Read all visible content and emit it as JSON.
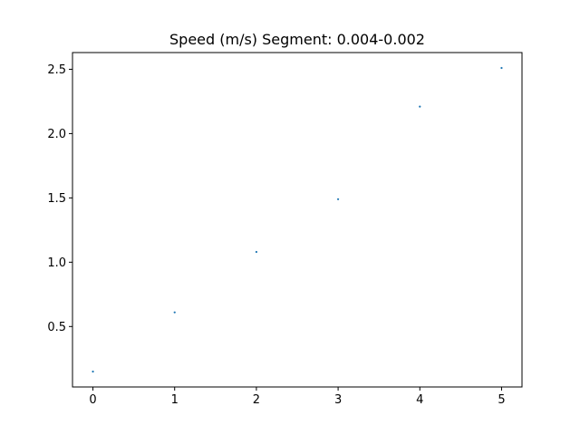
{
  "chart_data": {
    "type": "scatter",
    "title": "Speed (m/s) Segment: 0.004-0.002",
    "xlabel": "",
    "ylabel": "",
    "x": [
      0,
      1,
      2,
      3,
      4,
      5
    ],
    "y": [
      0.15,
      0.61,
      1.08,
      1.49,
      2.21,
      2.51
    ],
    "xlim": [
      -0.25,
      5.25
    ],
    "ylim": [
      0.03,
      2.63
    ],
    "xticks": [
      0,
      1,
      2,
      3,
      4,
      5
    ],
    "xtick_labels": [
      "0",
      "1",
      "2",
      "3",
      "4",
      "5"
    ],
    "yticks": [
      0.5,
      1.0,
      1.5,
      2.0,
      2.5
    ],
    "ytick_labels": [
      "0.5",
      "1.0",
      "1.5",
      "2.0",
      "2.5"
    ],
    "grid": false,
    "legend": "none",
    "marker_color": "#1f77b4"
  }
}
